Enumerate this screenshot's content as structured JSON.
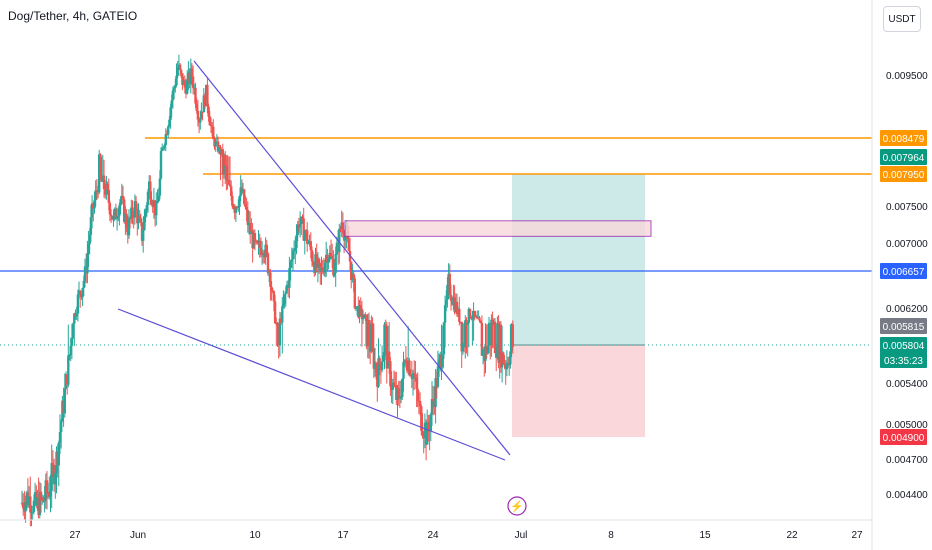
{
  "header": {
    "symbol_title": "Dog/Tether, 4h, GATEIO",
    "currency_button": "USDT"
  },
  "colors": {
    "up": "#26a69a",
    "down": "#ef5350",
    "orange_line": "#ff9800",
    "blue_line": "#2962ff",
    "trendline": "#5b4fd6",
    "target_zone": "#b2dfdb",
    "stop_zone": "#f8c9cf",
    "box_fill": "#f8d7dc",
    "box_border": "#9c27b0",
    "dotted_line": "#26a69a"
  },
  "chart_data": {
    "type": "candlestick",
    "title": "Dog/Tether, 4h, GATEIO",
    "quote_currency": "USDT",
    "y_tick_labels": [
      "0.009500",
      "0.007500",
      "0.007000",
      "0.006200",
      "0.005400",
      "0.005000",
      "0.004700",
      "0.004400"
    ],
    "x_tick_labels": [
      "27",
      "Jun",
      "10",
      "17",
      "24",
      "Jul",
      "8",
      "15",
      "22",
      "27"
    ],
    "price_labels": [
      {
        "value": "0.008479",
        "kind": "orange"
      },
      {
        "value": "0.007964",
        "kind": "green"
      },
      {
        "value": "0.007950",
        "kind": "orange"
      },
      {
        "value": "0.006657",
        "kind": "blue"
      },
      {
        "value": "0.005815",
        "kind": "gray"
      },
      {
        "value": "0.005804",
        "kind": "green"
      },
      {
        "value": "03:35:23",
        "kind": "green-countdown"
      },
      {
        "value": "0.004900",
        "kind": "red"
      }
    ],
    "horizontal_lines": [
      {
        "price": 0.008479,
        "color": "orange"
      },
      {
        "price": 0.00795,
        "color": "orange"
      },
      {
        "price": 0.006657,
        "color": "blue"
      }
    ],
    "current_price": 0.005804,
    "long_position": {
      "entry": 0.005804,
      "target": 0.00795,
      "stop": 0.0049
    },
    "supply_box": {
      "top": 0.0073,
      "bottom": 0.00709
    },
    "ohlc_path": [
      0.00432,
      0.00438,
      0.00428,
      0.00433,
      0.00445,
      0.0047,
      0.0052,
      0.0058,
      0.0063,
      0.0066,
      0.0074,
      0.0079,
      0.0077,
      0.0073,
      0.0076,
      0.0072,
      0.0075,
      0.0071,
      0.0078,
      0.0074,
      0.0083,
      0.009,
      0.0096,
      0.0093,
      0.0095,
      0.0088,
      0.0092,
      0.0084,
      0.0081,
      0.0078,
      0.0075,
      0.0077,
      0.0072,
      0.0069,
      0.007,
      0.0066,
      0.0057,
      0.0063,
      0.0068,
      0.0073,
      0.0071,
      0.0068,
      0.0066,
      0.0069,
      0.0067,
      0.0073,
      0.0069,
      0.0062,
      0.006,
      0.0058,
      0.0055,
      0.0058,
      0.0054,
      0.0052,
      0.0057,
      0.0055,
      0.0051,
      0.0049,
      0.0053,
      0.0057,
      0.0065,
      0.0062,
      0.0058,
      0.0061,
      0.0059,
      0.0057,
      0.0059,
      0.00575,
      0.00561,
      0.0058
    ],
    "annotations": [
      "falling wedge trendlines",
      "long position (target / stop zones)",
      "supply zone box"
    ]
  }
}
